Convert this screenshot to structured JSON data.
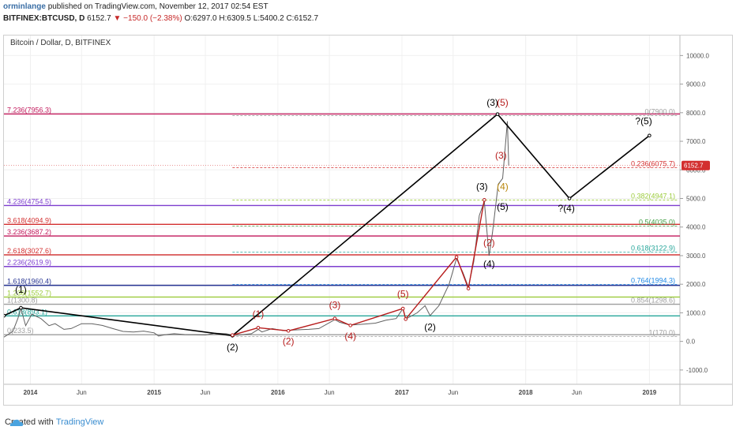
{
  "header": {
    "author": "orminlange",
    "published": "published on TradingView.com, November 12, 2017 02:54 EST",
    "symbol": "BITFINEX:BTCUSD, D",
    "last": "6152.7",
    "change": "▼ −150.0 (−2.38%)",
    "ohlc": "O:6297.0 H:6309.5 L:5400.2 C:6152.7"
  },
  "chart_title": "Bitcoin / Dollar, D, BITFINEX",
  "footer": {
    "created_with": "Created with",
    "brand": "TradingView"
  },
  "colors": {
    "wave_black": "#000000",
    "wave_red": "#b71c1c",
    "price": "#616161",
    "last_price": "#d32f2f"
  },
  "chart_data": {
    "type": "line",
    "title": "Bitcoin / Dollar, D, BITFINEX",
    "x_range": [
      "2013-10-15",
      "2019-04-01"
    ],
    "y_range": [
      -1500,
      10700
    ],
    "y_ticks": [
      -1000,
      0,
      1000,
      2000,
      3000,
      4000,
      5000,
      6000,
      7000,
      8000,
      9000,
      10000
    ],
    "y_tick_labels": [
      "-1000.0",
      "0.0",
      "1000.0",
      "2000.0",
      "3000.0",
      "4000.0",
      "5000.0",
      "6000.0",
      "7000.0",
      "8000.0",
      "9000.0",
      "10000.0"
    ],
    "x_ticks": [
      {
        "date": "2014-01-01",
        "label": "2014"
      },
      {
        "date": "2014-06-01",
        "label": "Jun"
      },
      {
        "date": "2015-01-01",
        "label": "2015"
      },
      {
        "date": "2015-06-01",
        "label": "Jun"
      },
      {
        "date": "2016-01-01",
        "label": "2016"
      },
      {
        "date": "2016-06-01",
        "label": "Jun"
      },
      {
        "date": "2017-01-01",
        "label": "2017"
      },
      {
        "date": "2017-06-01",
        "label": "Jun"
      },
      {
        "date": "2018-01-01",
        "label": "2018"
      },
      {
        "date": "2018-06-01",
        "label": "Jun"
      },
      {
        "date": "2019-01-01",
        "label": "2019"
      }
    ],
    "last_price": {
      "value": 6152.7,
      "label": "6152.7"
    },
    "fib_extensions": [
      {
        "label": "7.236(7956.3)",
        "value": 7956.3,
        "color": "#c2185b"
      },
      {
        "label": "4.236(4754.5)",
        "value": 4754.5,
        "color": "#7e3fcf"
      },
      {
        "label": "3.618(4094.9)",
        "value": 4094.9,
        "color": "#d32f2f"
      },
      {
        "label": "3.236(3687.2)",
        "value": 3687.2,
        "color": "#c2185b"
      },
      {
        "label": "2.618(3027.6)",
        "value": 3027.6,
        "color": "#d32f2f"
      },
      {
        "label": "2.236(2619.9)",
        "value": 2619.9,
        "color": "#7e3fcf"
      },
      {
        "label": "1.618(1960.4)",
        "value": 1960.4,
        "color": "#283593"
      },
      {
        "label": "1.236(1552.7)",
        "value": 1552.7,
        "color": "#9ccc3c"
      },
      {
        "label": "1(1300.8)",
        "value": 1300.8,
        "color": "#9e9e9e"
      },
      {
        "label": "0.618(893.1)",
        "value": 893.1,
        "color": "#26a69a"
      },
      {
        "label": "0(233.5)",
        "value": 233.5,
        "color": "#9e9e9e"
      }
    ],
    "fib_retracements": [
      {
        "label": "0(7900.0)",
        "value": 7900.0,
        "color": "#9e9e9e"
      },
      {
        "label": "0.236(6075.7)",
        "value": 6075.7,
        "color": "#d32f2f"
      },
      {
        "label": "0.382(4947.1)",
        "value": 4947.1,
        "color": "#9ccc3c"
      },
      {
        "label": "0.5(4035.0)",
        "value": 4035.0,
        "color": "#43a047"
      },
      {
        "label": "0.618(3122.9)",
        "value": 3122.9,
        "color": "#26a69a"
      },
      {
        "label": "0.764(1994.3)",
        "value": 1994.3,
        "color": "#1e88e5"
      },
      {
        "label": "0.854(1298.6)",
        "value": 1298.6,
        "color": "#9e9e9e"
      },
      {
        "label": "1(170.0)",
        "value": 170.0,
        "color": "#9e9e9e"
      }
    ],
    "price_series": [
      [
        "2013-10-15",
        150
      ],
      [
        "2013-11-10",
        350
      ],
      [
        "2013-11-25",
        800
      ],
      [
        "2013-12-04",
        1150
      ],
      [
        "2013-12-18",
        550
      ],
      [
        "2014-01-05",
        950
      ],
      [
        "2014-02-01",
        800
      ],
      [
        "2014-02-25",
        550
      ],
      [
        "2014-03-15",
        620
      ],
      [
        "2014-04-10",
        420
      ],
      [
        "2014-05-01",
        450
      ],
      [
        "2014-06-01",
        620
      ],
      [
        "2014-07-01",
        620
      ],
      [
        "2014-08-01",
        560
      ],
      [
        "2014-09-01",
        450
      ],
      [
        "2014-10-01",
        350
      ],
      [
        "2014-11-01",
        330
      ],
      [
        "2014-12-01",
        360
      ],
      [
        "2015-01-01",
        300
      ],
      [
        "2015-01-14",
        190
      ],
      [
        "2015-02-01",
        230
      ],
      [
        "2015-03-01",
        270
      ],
      [
        "2015-04-01",
        240
      ],
      [
        "2015-05-01",
        235
      ],
      [
        "2015-06-01",
        225
      ],
      [
        "2015-07-01",
        285
      ],
      [
        "2015-08-01",
        270
      ],
      [
        "2015-08-25",
        210
      ],
      [
        "2015-09-15",
        230
      ],
      [
        "2015-10-15",
        270
      ],
      [
        "2015-11-04",
        420
      ],
      [
        "2015-11-15",
        330
      ],
      [
        "2015-12-15",
        450
      ],
      [
        "2016-01-15",
        380
      ],
      [
        "2016-02-15",
        400
      ],
      [
        "2016-04-01",
        420
      ],
      [
        "2016-05-01",
        450
      ],
      [
        "2016-06-17",
        760
      ],
      [
        "2016-07-01",
        670
      ],
      [
        "2016-08-01",
        570
      ],
      [
        "2016-09-15",
        610
      ],
      [
        "2016-10-15",
        640
      ],
      [
        "2016-11-15",
        740
      ],
      [
        "2016-12-15",
        800
      ],
      [
        "2017-01-04",
        1150
      ],
      [
        "2017-01-12",
        780
      ],
      [
        "2017-02-15",
        1000
      ],
      [
        "2017-03-10",
        1250
      ],
      [
        "2017-03-25",
        900
      ],
      [
        "2017-04-20",
        1250
      ],
      [
        "2017-05-20",
        2000
      ],
      [
        "2017-06-11",
        2900
      ],
      [
        "2017-06-30",
        2400
      ],
      [
        "2017-07-16",
        1900
      ],
      [
        "2017-08-01",
        2800
      ],
      [
        "2017-08-17",
        4400
      ],
      [
        "2017-09-01",
        4900
      ],
      [
        "2017-09-15",
        3000
      ],
      [
        "2017-09-25",
        3800
      ],
      [
        "2017-10-12",
        5500
      ],
      [
        "2017-10-25",
        5700
      ],
      [
        "2017-11-08",
        7700
      ],
      [
        "2017-11-12",
        6152.7
      ]
    ],
    "wave_lines": [
      {
        "name": "",
        "color": "#000000",
        "points": [
          [
            "2013-10-15",
            900
          ],
          [
            "2013-12-04",
            1175
          ],
          [
            "2015-08-20",
            200
          ],
          [
            "2017-10-10",
            7950
          ],
          [
            "2018-05-10",
            5000
          ],
          [
            "2019-01-01",
            7200
          ]
        ]
      },
      {
        "name": "",
        "color": "#b71c1c",
        "points": [
          [
            "2015-08-20",
            220
          ],
          [
            "2015-11-04",
            480
          ],
          [
            "2016-02-01",
            370
          ],
          [
            "2016-06-17",
            800
          ],
          [
            "2016-08-02",
            560
          ],
          [
            "2017-01-04",
            1150
          ],
          [
            "2017-01-12",
            780
          ],
          [
            "2017-06-11",
            2950
          ],
          [
            "2017-07-16",
            1850
          ],
          [
            "2017-09-01",
            4950
          ]
        ]
      }
    ],
    "wave_labels": [
      {
        "text": "(1)",
        "x": "2013-12-04",
        "y": 1700,
        "color": "#000000"
      },
      {
        "text": "(2)",
        "x": "2015-08-20",
        "y": -320,
        "color": "#000000"
      },
      {
        "text": "(3)",
        "x": "2017-09-25",
        "y": 8250,
        "color": "#000000"
      },
      {
        "text": "?(4)",
        "x": "2018-05-01",
        "y": 4550,
        "color": "#000000"
      },
      {
        "text": "?(5)",
        "x": "2018-12-15",
        "y": 7600,
        "color": "#000000"
      },
      {
        "text": "(1)",
        "x": "2015-11-04",
        "y": 850,
        "color": "#b71c1c"
      },
      {
        "text": "(2)",
        "x": "2016-02-01",
        "y": -100,
        "color": "#b71c1c"
      },
      {
        "text": "(3)",
        "x": "2016-06-17",
        "y": 1170,
        "color": "#b71c1c"
      },
      {
        "text": "(4)",
        "x": "2016-08-02",
        "y": 80,
        "color": "#b71c1c"
      },
      {
        "text": "(5)",
        "x": "2017-01-04",
        "y": 1550,
        "color": "#b71c1c"
      },
      {
        "text": "(2)",
        "x": "2017-03-25",
        "y": 390,
        "color": "#000000"
      },
      {
        "text": "(3)",
        "x": "2017-08-25",
        "y": 5300,
        "color": "#000000"
      },
      {
        "text": "(2)",
        "x": "2017-09-15",
        "y": 3350,
        "color": "#b71c1c"
      },
      {
        "text": "(4)",
        "x": "2017-09-15",
        "y": 2600,
        "color": "#000000"
      },
      {
        "text": "(5)",
        "x": "2017-10-25",
        "y": 8250,
        "color": "#b71c1c"
      },
      {
        "text": "(3)",
        "x": "2017-10-20",
        "y": 6400,
        "color": "#b71c1c"
      },
      {
        "text": "(4)",
        "x": "2017-10-25",
        "y": 5300,
        "color": "#b8860b"
      },
      {
        "text": "(5)",
        "x": "2017-10-25",
        "y": 4600,
        "color": "#000000"
      }
    ]
  }
}
